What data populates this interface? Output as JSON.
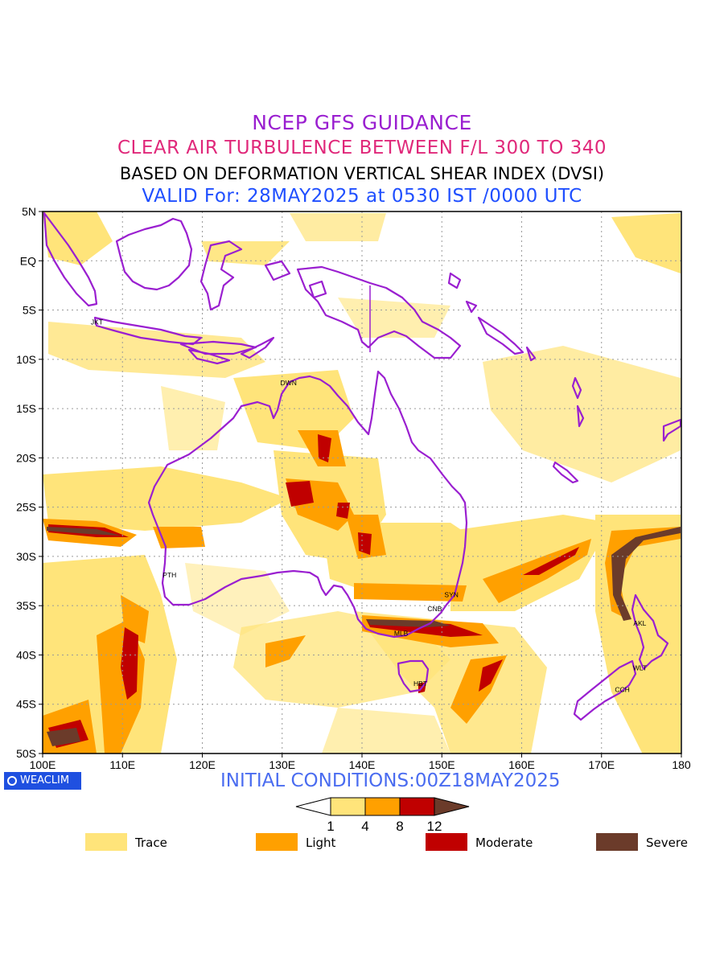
{
  "header": {
    "line1": "NCEP GFS GUIDANCE",
    "line2": "CLEAR AIR TURBULENCE BETWEEN F/L 300 TO 340",
    "line3": "BASED ON DEFORMATION VERTICAL SHEAR INDEX (DVSI)",
    "line4": "VALID For: 28MAY2025 at 0530 IST /0000 UTC"
  },
  "map": {
    "lat_labels": [
      "5N",
      "EQ",
      "5S",
      "10S",
      "15S",
      "20S",
      "25S",
      "30S",
      "35S",
      "40S",
      "45S",
      "50S"
    ],
    "lon_labels": [
      "100E",
      "110E",
      "120E",
      "130E",
      "140E",
      "150E",
      "160E",
      "170E",
      "180"
    ],
    "stations": [
      {
        "name": "JKT",
        "lon": 106.8,
        "lat": -6.2
      },
      {
        "name": "DWN",
        "lon": 130.8,
        "lat": -12.4
      },
      {
        "name": "PTH",
        "lon": 115.9,
        "lat": -31.9
      },
      {
        "name": "SYN",
        "lon": 151.2,
        "lat": -33.9
      },
      {
        "name": "CNB",
        "lon": 149.1,
        "lat": -35.3
      },
      {
        "name": "MLB",
        "lon": 144.9,
        "lat": -37.8
      },
      {
        "name": "HBT",
        "lon": 147.3,
        "lat": -42.9
      },
      {
        "name": "AKL",
        "lon": 174.8,
        "lat": -36.8
      },
      {
        "name": "WLT",
        "lon": 174.8,
        "lat": -41.3
      },
      {
        "name": "CCH",
        "lon": 172.6,
        "lat": -43.5
      }
    ],
    "colors": {
      "coast": "#9a1fd0",
      "trace": "#ffe47a",
      "light": "#ffa000",
      "moderate": "#c00000",
      "severe": "#6b3b2a"
    }
  },
  "footer": {
    "brand": "WEACLIM",
    "initial_conditions": "INITIAL CONDITIONS:00Z18MAY2025"
  },
  "colorbar": {
    "ticks": [
      "1",
      "4",
      "8",
      "12"
    ],
    "colors": [
      "#ffffff",
      "#ffe47a",
      "#ffa000",
      "#c00000",
      "#6b3b2a"
    ]
  },
  "legend": [
    {
      "label": "Trace",
      "color": "#ffe47a"
    },
    {
      "label": "Light",
      "color": "#ffa000"
    },
    {
      "label": "Moderate",
      "color": "#c00000"
    },
    {
      "label": "Severe",
      "color": "#6b3b2a"
    }
  ]
}
